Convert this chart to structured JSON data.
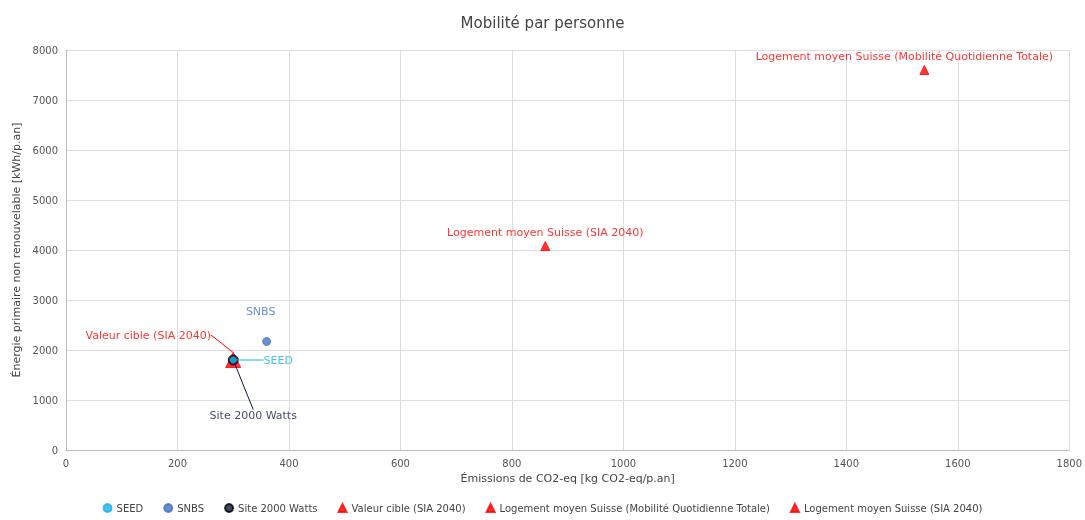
{
  "chart_data": {
    "type": "scatter",
    "title": "Mobilité par personne",
    "xlabel": "Émissions de CO2-eq [kg CO2-eq/p.an]",
    "ylabel": "Énergie primaire non renouvelable [kWh/p.an]",
    "xlim": [
      0,
      1800
    ],
    "xticks": [
      0,
      200,
      400,
      600,
      800,
      1000,
      1200,
      1400,
      1600,
      1800
    ],
    "ylim": [
      0,
      8000
    ],
    "yticks": [
      0,
      1000,
      2000,
      3000,
      4000,
      5000,
      6000,
      7000,
      8000
    ],
    "grid": true,
    "legend": "bottom",
    "series": [
      {
        "name": "SEED",
        "color": "#1cb0e8",
        "marker": "circle",
        "x": [
          300
        ],
        "values": [
          1800
        ]
      },
      {
        "name": "SNBS",
        "color": "#4472c4",
        "marker": "circle",
        "x": [
          360
        ],
        "values": [
          2170
        ]
      },
      {
        "name": "Site 2000 Watts",
        "color": "#0d1b3e",
        "marker": "circle",
        "x": [
          300
        ],
        "values": [
          1800
        ]
      },
      {
        "name": "Valeur cible (SIA 2040)",
        "color": "#ff0000",
        "marker": "triangle",
        "x": [
          300
        ],
        "values": [
          1800
        ]
      },
      {
        "name": "Logement moyen Suisse (Mobilité Quotidienne Totale)",
        "color": "#ff0000",
        "marker": "triangle",
        "x": [
          1540
        ],
        "values": [
          7600
        ]
      },
      {
        "name": "Logement moyen Suisse (SIA 2040)",
        "color": "#ff0000",
        "marker": "triangle",
        "x": [
          860
        ],
        "values": [
          4080
        ]
      }
    ]
  }
}
